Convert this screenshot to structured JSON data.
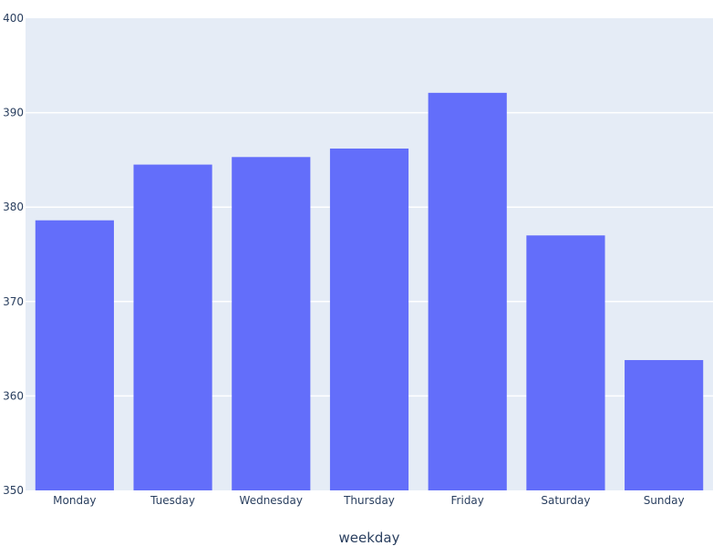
{
  "chart_data": {
    "type": "bar",
    "title": "",
    "xlabel": "weekday",
    "ylabel": "",
    "categories": [
      "Monday",
      "Tuesday",
      "Wednesday",
      "Thursday",
      "Friday",
      "Saturday",
      "Sunday"
    ],
    "values": [
      378.6,
      384.5,
      385.3,
      386.2,
      392.1,
      377.0,
      363.8
    ],
    "ylim": [
      350,
      400
    ],
    "yticks": [
      350,
      360,
      370,
      380,
      390,
      400
    ],
    "grid": true,
    "colors": {
      "bar": "#636efa",
      "plot_bg": "#e5ecf6",
      "grid": "#ffffff",
      "text": "#2a3f5f"
    }
  }
}
